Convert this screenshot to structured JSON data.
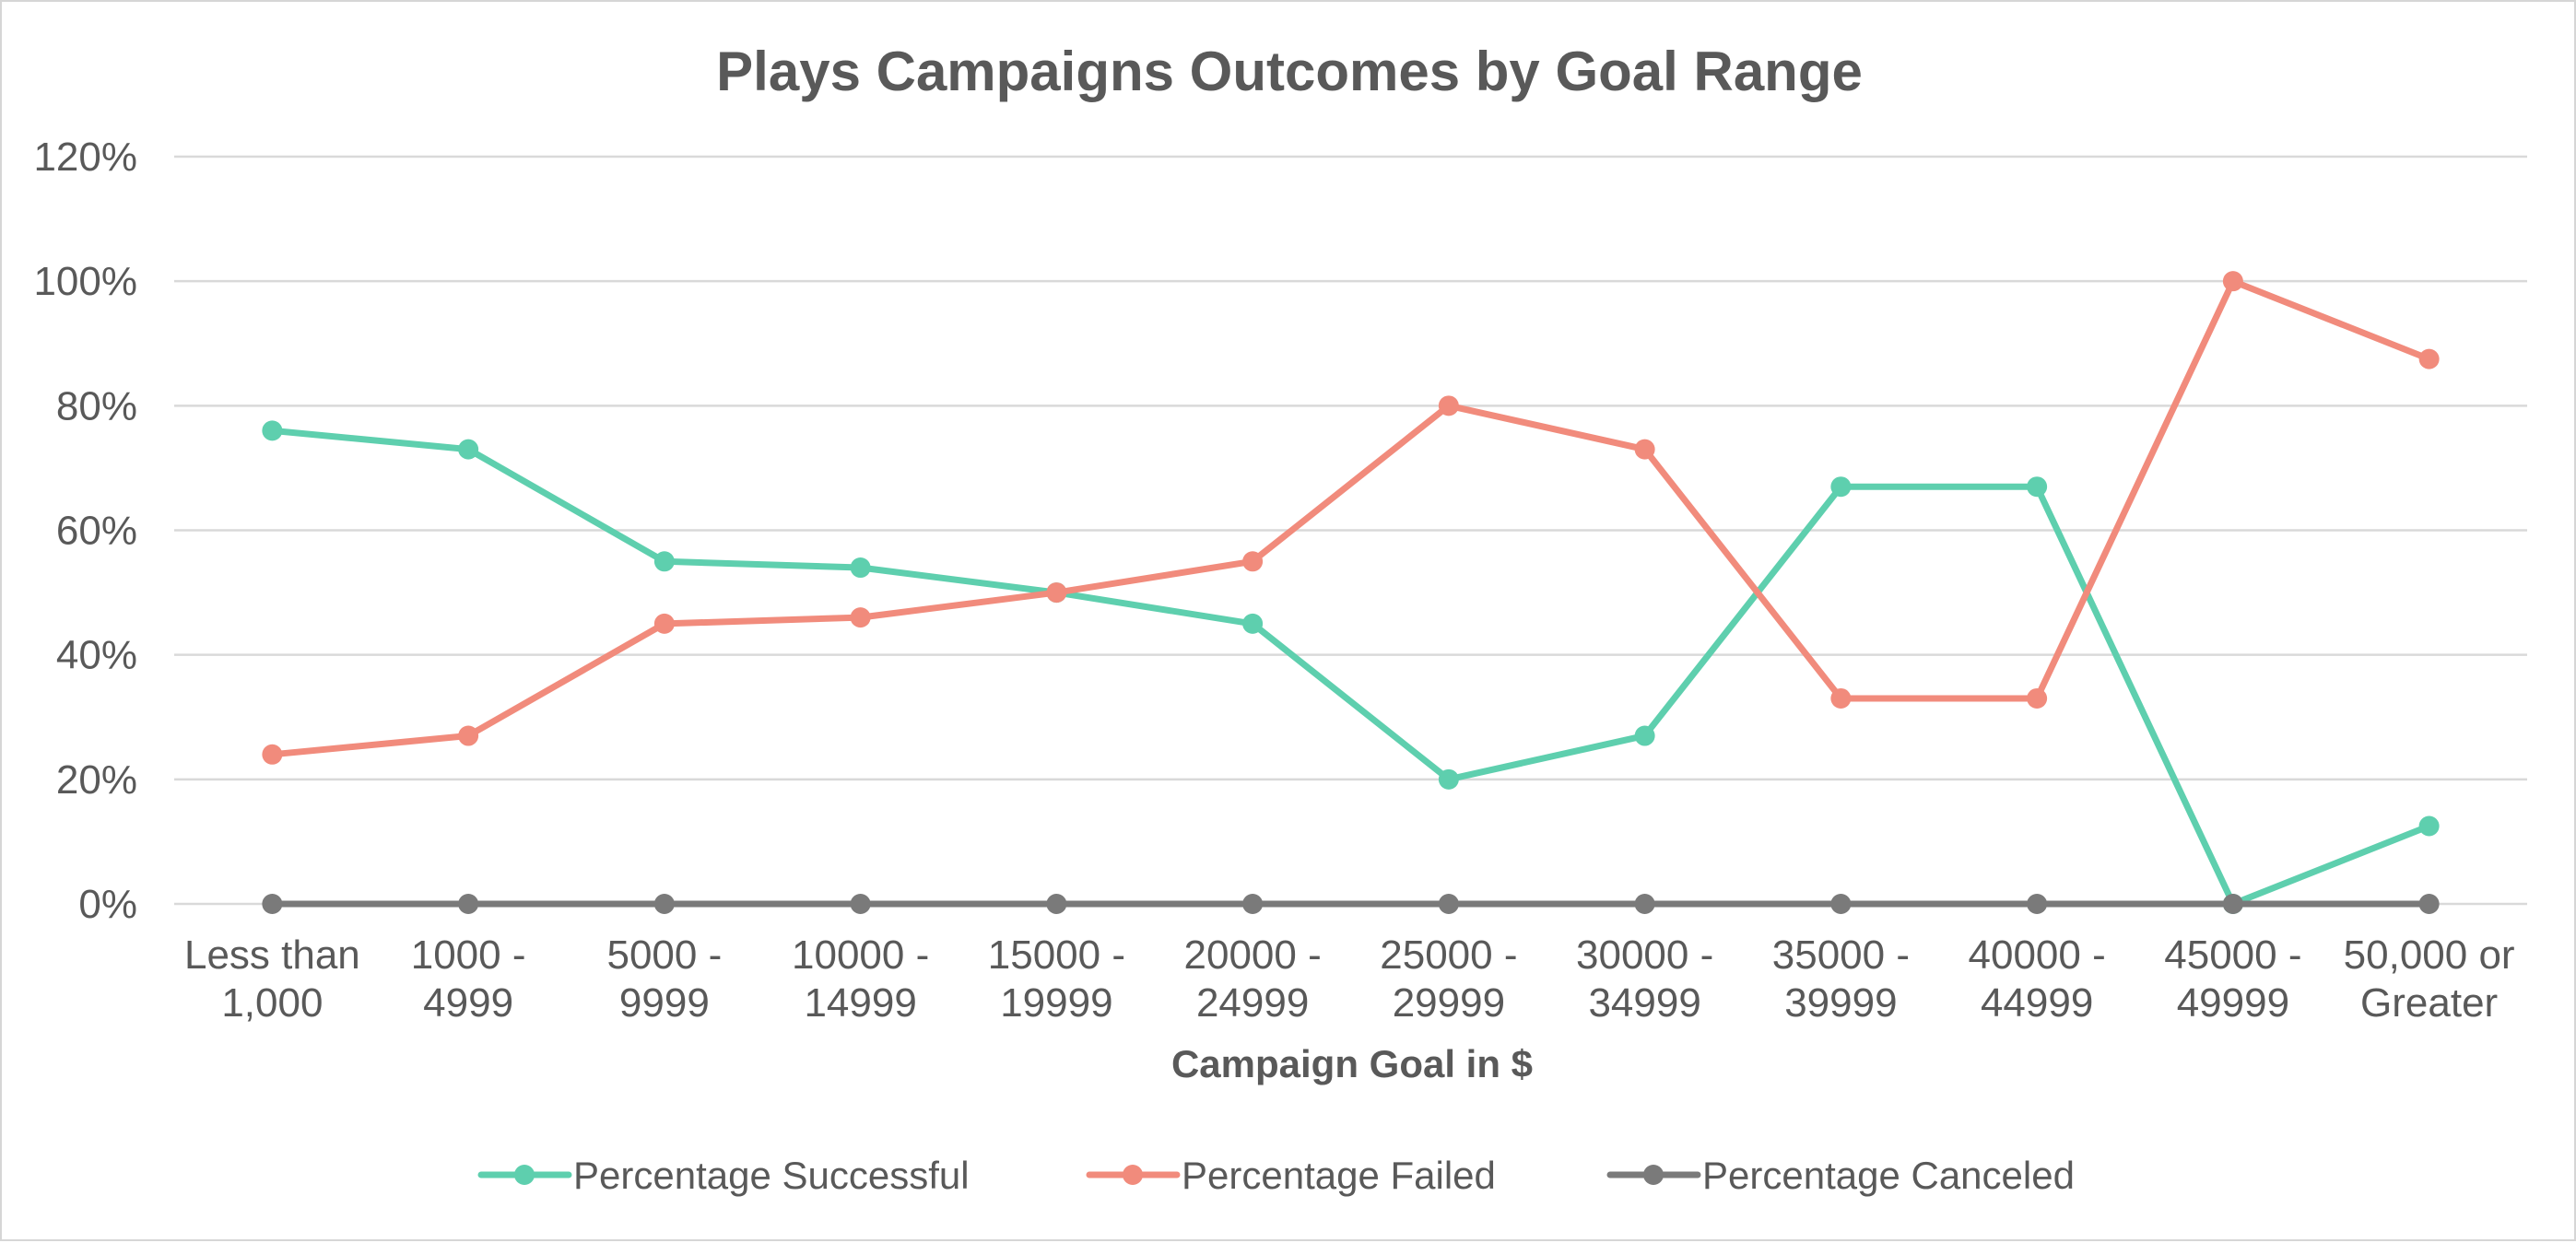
{
  "chart_data": {
    "type": "line",
    "title": "Plays Campaigns Outcomes by Goal Range",
    "xlabel": "Campaign Goal in $",
    "ylabel": "",
    "ylim": [
      0,
      1.2
    ],
    "yticks": [
      "0%",
      "20%",
      "40%",
      "60%",
      "80%",
      "100%",
      "120%"
    ],
    "grid": true,
    "legend_position": "bottom",
    "categories": [
      [
        "Less than",
        "1,000"
      ],
      [
        "1000 -",
        "4999"
      ],
      [
        "5000 -",
        "9999"
      ],
      [
        "10000 -",
        "14999"
      ],
      [
        "15000 -",
        "19999"
      ],
      [
        "20000 -",
        "24999"
      ],
      [
        "25000 -",
        "29999"
      ],
      [
        "30000 -",
        "34999"
      ],
      [
        "35000 -",
        "39999"
      ],
      [
        "40000 -",
        "44999"
      ],
      [
        "45000 -",
        "49999"
      ],
      [
        "50,000 or",
        "Greater"
      ]
    ],
    "series": [
      {
        "name": "Percentage Successful",
        "color": "#5ecfae",
        "values": [
          0.76,
          0.73,
          0.55,
          0.54,
          0.5,
          0.45,
          0.2,
          0.27,
          0.67,
          0.67,
          0.0,
          0.125
        ]
      },
      {
        "name": "Percentage Failed",
        "color": "#f18b7c",
        "values": [
          0.24,
          0.27,
          0.45,
          0.46,
          0.5,
          0.55,
          0.8,
          0.73,
          0.33,
          0.33,
          1.0,
          0.875
        ]
      },
      {
        "name": "Percentage Canceled",
        "color": "#7a7a7a",
        "values": [
          0,
          0,
          0,
          0,
          0,
          0,
          0,
          0,
          0,
          0,
          0,
          0
        ]
      }
    ]
  }
}
